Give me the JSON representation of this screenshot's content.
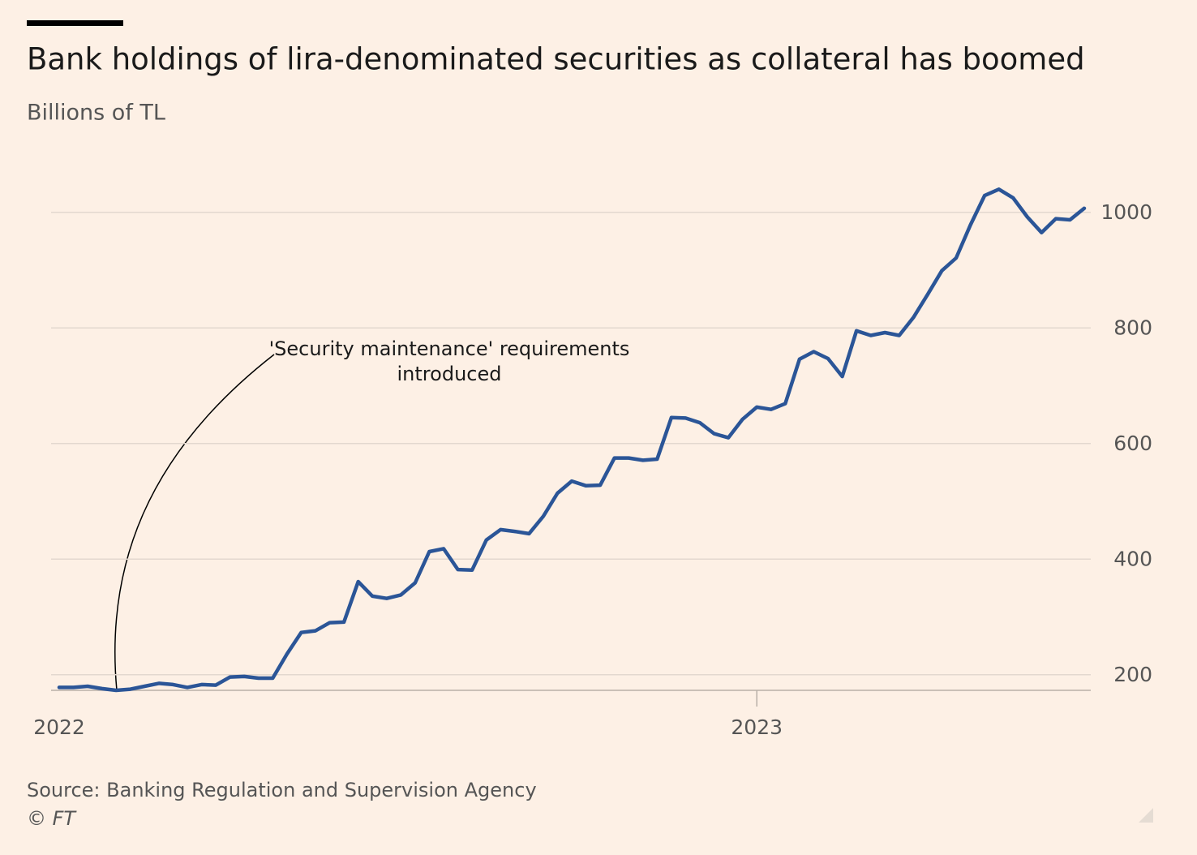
{
  "chart_data": {
    "type": "line",
    "title": "Bank holdings of lira-denominated securities as collateral has boomed",
    "subtitle": "Billions of TL",
    "annotation": [
      "'Security maintenance' requirements",
      "introduced"
    ],
    "source": "Source: Banking Regulation and Supervision Agency",
    "credit": "© FT",
    "categories": [
      "2022",
      null,
      null,
      null,
      null,
      null,
      null,
      null,
      null,
      null,
      null,
      null,
      null,
      null,
      null,
      null,
      null,
      null,
      null,
      null,
      null,
      null,
      null,
      null,
      null,
      null,
      null,
      null,
      null,
      null,
      null,
      null,
      null,
      null,
      null,
      null,
      null,
      null,
      null,
      null,
      null,
      null,
      null,
      null,
      null,
      null,
      null,
      null,
      null,
      "2023",
      null,
      null,
      null,
      null,
      null,
      null,
      null,
      null,
      null,
      null,
      null,
      null,
      null,
      null,
      null,
      null,
      null,
      null,
      null,
      null,
      null,
      null,
      null
    ],
    "values": [
      178,
      178,
      180,
      176,
      173,
      175,
      180,
      185,
      183,
      178,
      183,
      182,
      196,
      197,
      194,
      194,
      236,
      273,
      276,
      290,
      291,
      361,
      336,
      332,
      338,
      359,
      413,
      418,
      382,
      381,
      433,
      451,
      448,
      444,
      474,
      514,
      535,
      527,
      528,
      575,
      575,
      571,
      573,
      645,
      644,
      636,
      617,
      610,
      642,
      663,
      659,
      669,
      746,
      759,
      747,
      716,
      795,
      787,
      792,
      787,
      818,
      858,
      899,
      921,
      978,
      1029,
      1040,
      1025,
      992,
      965,
      989,
      987,
      1007
    ],
    "color": "#2b5597",
    "ylim": [
      173,
      1060
    ],
    "yticks": [
      200,
      400,
      600,
      800,
      1000
    ],
    "grid": true
  }
}
